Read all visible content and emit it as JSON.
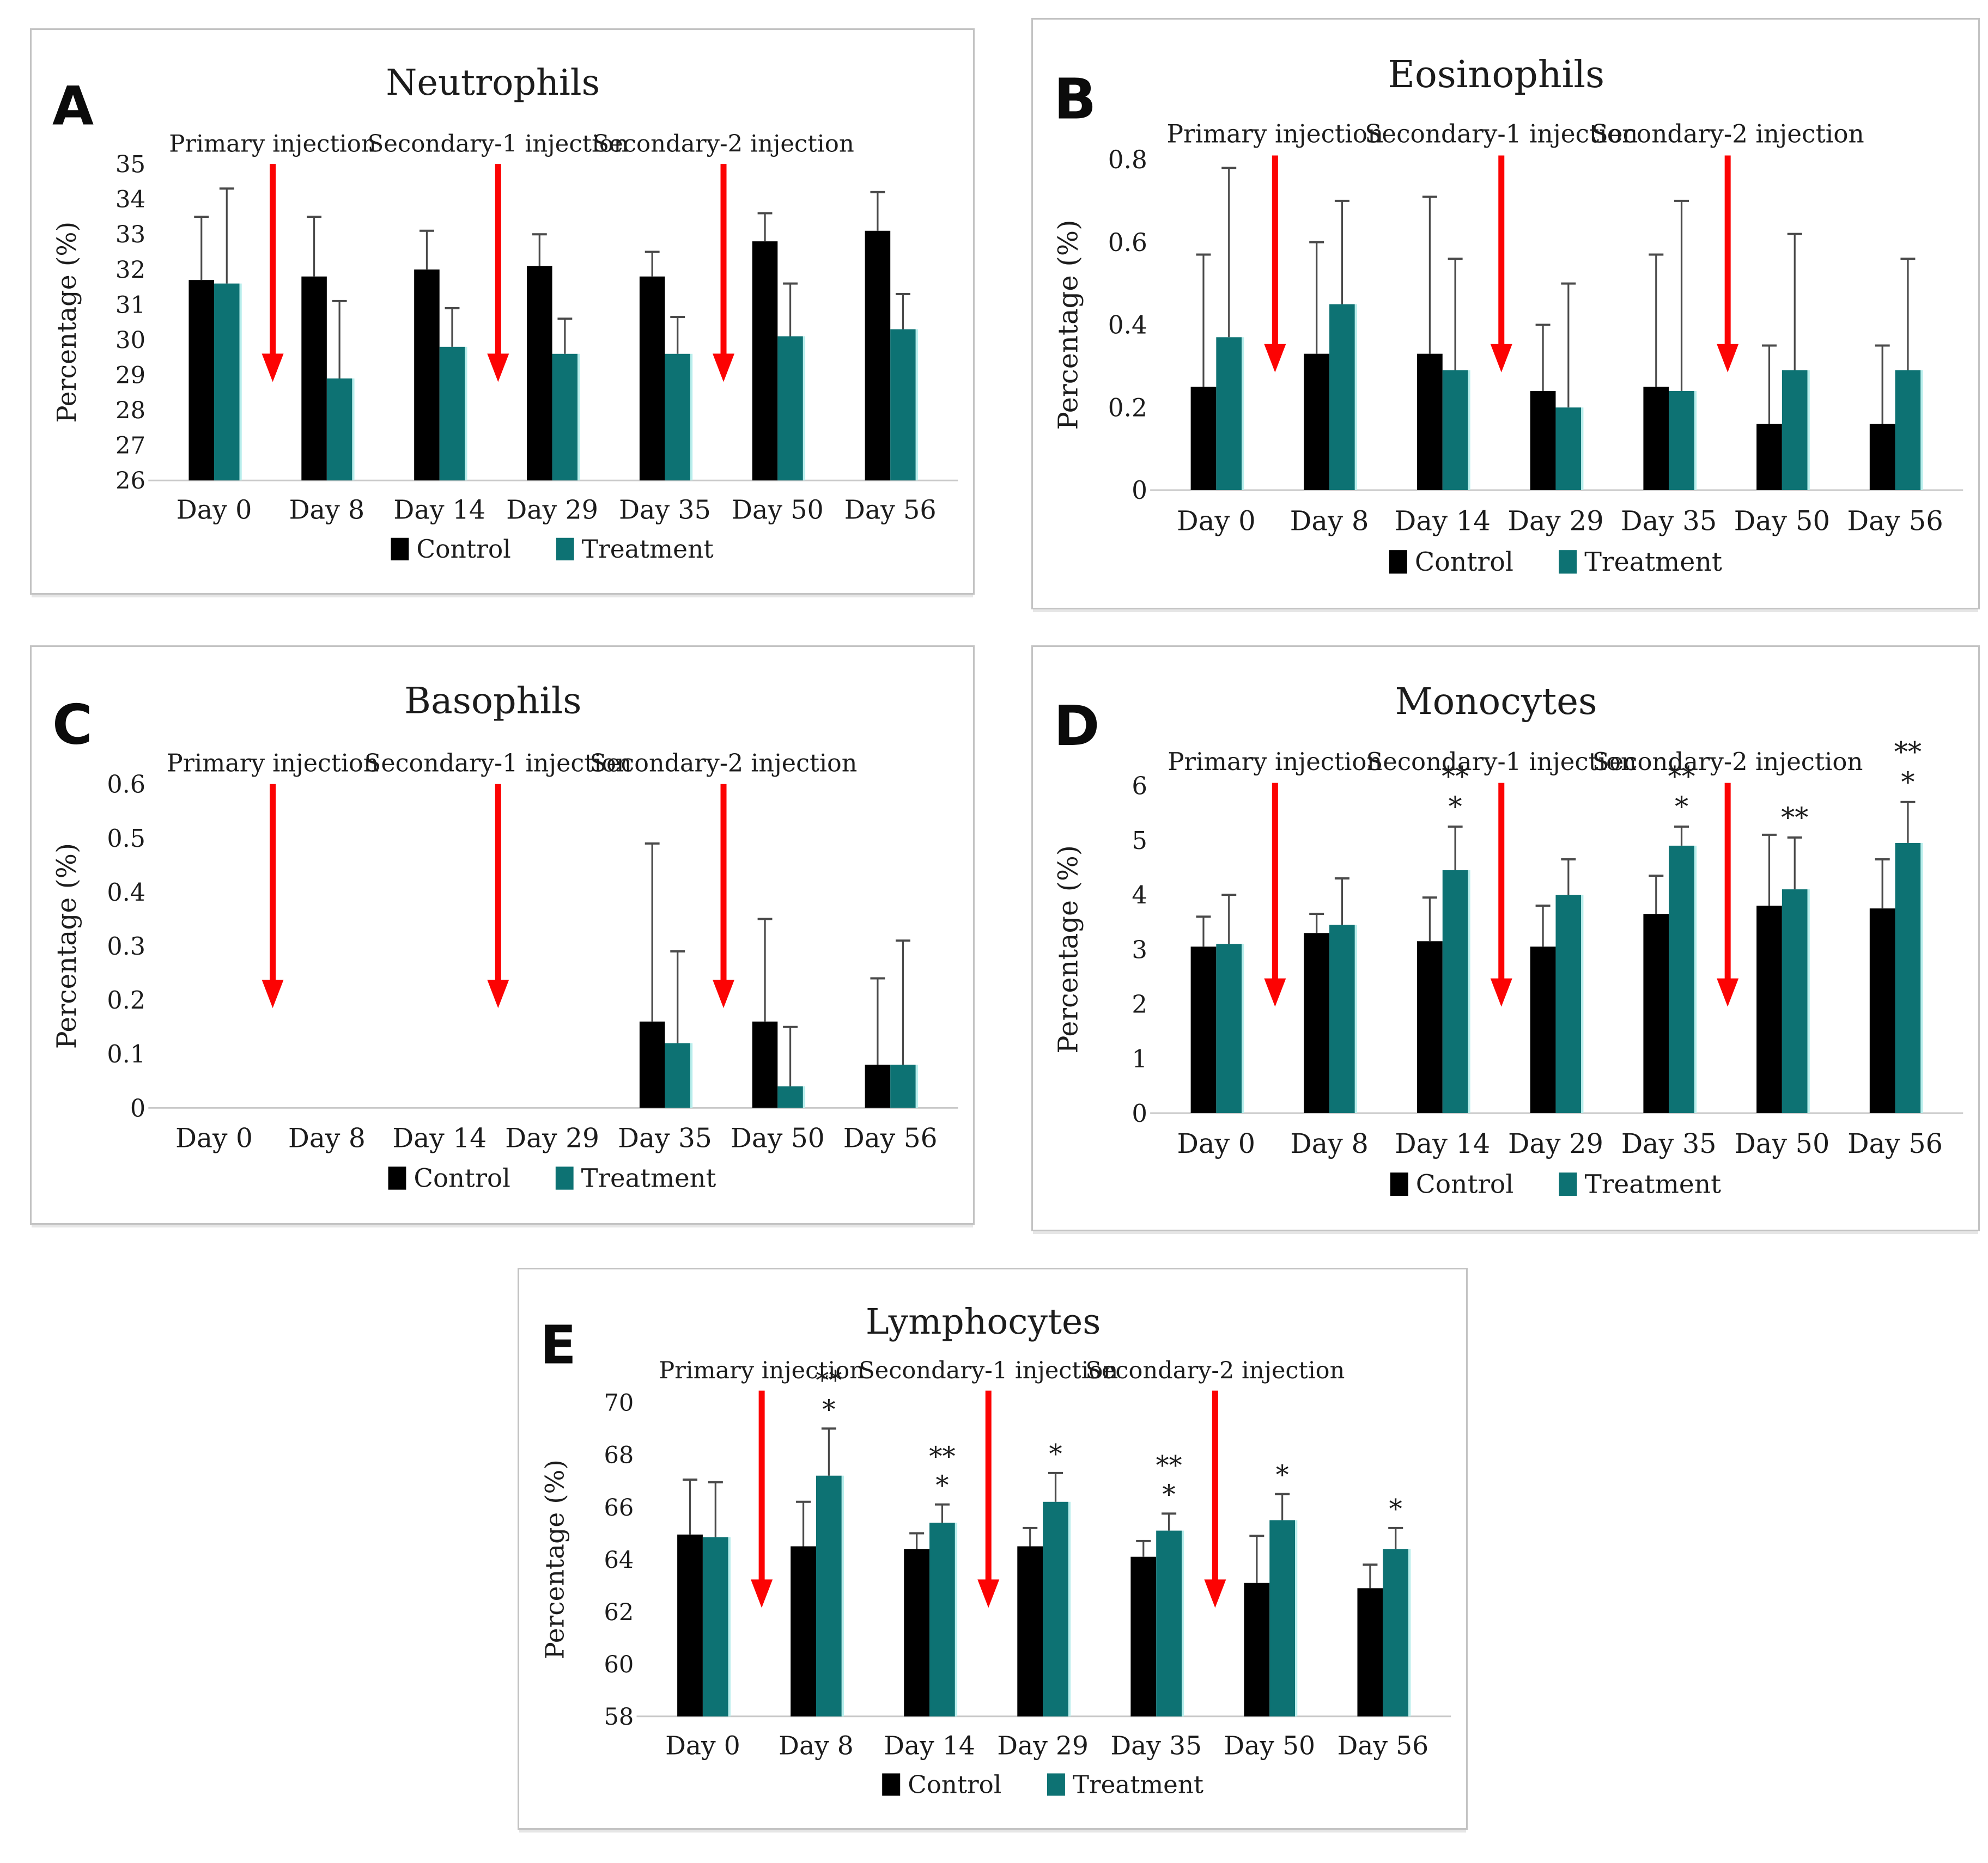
{
  "figure": {
    "description_labels": [
      "A",
      "B",
      "C",
      "D",
      "E"
    ]
  },
  "colors": {
    "control": "#000000",
    "treatment": "#0D7273",
    "treatment_halo": "#B8EEEC",
    "arrow": "#FC0303",
    "error_bar": "#4A4A4A",
    "baseline": "#C9C9C9",
    "text": "#1C1C1C"
  },
  "legend": {
    "control_label": "Control",
    "treatment_label": "Treatment"
  },
  "chart_data": [
    {
      "panel": "A",
      "type": "bar",
      "title": "Neutrophils",
      "ylabel": "Percentage (%)",
      "ylim": [
        26,
        35
      ],
      "yticks": [
        26,
        27,
        28,
        29,
        30,
        31,
        32,
        33,
        34,
        35
      ],
      "ytick_labels": [
        "26",
        "27",
        "28",
        "29",
        "30",
        "31",
        "32",
        "33",
        "34",
        "35"
      ],
      "categories": [
        "Day 0",
        "Day 8",
        "Day 14",
        "Day 29",
        "Day 35",
        "Day 50",
        "Day 56"
      ],
      "series": [
        {
          "name": "Control",
          "color": "#000000",
          "values": [
            31.7,
            31.8,
            32.0,
            32.1,
            31.8,
            32.8,
            33.1
          ],
          "errors_up": [
            1.8,
            1.7,
            1.1,
            0.9,
            0.7,
            0.8,
            1.1
          ],
          "significance": [
            "",
            "",
            "",
            "",
            "",
            "",
            ""
          ]
        },
        {
          "name": "Treatment",
          "color": "#0D7273",
          "values": [
            31.6,
            28.9,
            29.8,
            29.6,
            29.6,
            30.1,
            30.3
          ],
          "errors_up": [
            2.7,
            2.2,
            1.1,
            1.0,
            1.05,
            1.5,
            1.0
          ],
          "significance": [
            "",
            "",
            "",
            "",
            "",
            "",
            ""
          ]
        }
      ],
      "arrows": [
        {
          "label": "Primary injection",
          "slot_boundary": 1,
          "y_top": 35.0,
          "y_tip": 28.8
        },
        {
          "label": "Secondary-1 injection",
          "slot_boundary": 3,
          "y_top": 35.0,
          "y_tip": 28.8
        },
        {
          "label": "Secondary-2 injection",
          "slot_boundary": 5,
          "y_top": 35.0,
          "y_tip": 28.8
        }
      ],
      "legend": [
        "Control",
        "Treatment"
      ]
    },
    {
      "panel": "B",
      "type": "bar",
      "title": "Eosinophils",
      "ylabel": "Percentage (%)",
      "ylim": [
        0,
        0.8
      ],
      "yticks": [
        0,
        0.2,
        0.4,
        0.6,
        0.8
      ],
      "ytick_labels": [
        "0",
        "0.2",
        "0.4",
        "0.6",
        "0.8"
      ],
      "categories": [
        "Day 0",
        "Day 8",
        "Day 14",
        "Day 29",
        "Day 35",
        "Day 50",
        "Day 56"
      ],
      "series": [
        {
          "name": "Control",
          "color": "#000000",
          "values": [
            0.25,
            0.33,
            0.33,
            0.24,
            0.25,
            0.16,
            0.16
          ],
          "errors_up": [
            0.32,
            0.27,
            0.38,
            0.16,
            0.32,
            0.19,
            0.19
          ],
          "significance": [
            "",
            "",
            "",
            "",
            "",
            "",
            ""
          ]
        },
        {
          "name": "Treatment",
          "color": "#0D7273",
          "values": [
            0.37,
            0.45,
            0.29,
            0.2,
            0.24,
            0.29,
            0.29
          ],
          "errors_up": [
            0.41,
            0.25,
            0.27,
            0.3,
            0.46,
            0.33,
            0.27
          ],
          "significance": [
            "",
            "",
            "",
            "",
            "",
            "",
            ""
          ]
        }
      ],
      "arrows": [
        {
          "label": "Primary injection",
          "slot_boundary": 1,
          "y_top": 0.81,
          "y_tip": 0.285
        },
        {
          "label": "Secondary-1 injection",
          "slot_boundary": 3,
          "y_top": 0.81,
          "y_tip": 0.285
        },
        {
          "label": "Secondary-2 injection",
          "slot_boundary": 5,
          "y_top": 0.81,
          "y_tip": 0.285
        }
      ],
      "legend": [
        "Control",
        "Treatment"
      ]
    },
    {
      "panel": "C",
      "type": "bar",
      "title": "Basophils",
      "ylabel": "Percentage (%)",
      "ylim": [
        0,
        0.6
      ],
      "yticks": [
        0,
        0.1,
        0.2,
        0.3,
        0.4,
        0.5,
        0.6
      ],
      "ytick_labels": [
        "0",
        "0.1",
        "0.2",
        "0.3",
        "0.4",
        "0.5",
        "0.6"
      ],
      "categories": [
        "Day 0",
        "Day 8",
        "Day 14",
        "Day 29",
        "Day 35",
        "Day 50",
        "Day 56"
      ],
      "series": [
        {
          "name": "Control",
          "color": "#000000",
          "values": [
            0,
            0,
            0,
            0,
            0.16,
            0.16,
            0.08
          ],
          "errors_up": [
            0,
            0,
            0,
            0,
            0.33,
            0.19,
            0.16
          ],
          "significance": [
            "",
            "",
            "",
            "",
            "",
            "",
            ""
          ]
        },
        {
          "name": "Treatment",
          "color": "#0D7273",
          "values": [
            0,
            0,
            0,
            0,
            0.12,
            0.04,
            0.08
          ],
          "errors_up": [
            0,
            0,
            0,
            0,
            0.17,
            0.11,
            0.23
          ],
          "significance": [
            "",
            "",
            "",
            "",
            "",
            "",
            ""
          ]
        }
      ],
      "arrows": [
        {
          "label": "Primary injection",
          "slot_boundary": 1,
          "y_top": 0.6,
          "y_tip": 0.185
        },
        {
          "label": "Secondary-1 injection",
          "slot_boundary": 3,
          "y_top": 0.6,
          "y_tip": 0.185
        },
        {
          "label": "Secondary-2 injection",
          "slot_boundary": 5,
          "y_top": 0.6,
          "y_tip": 0.185
        }
      ],
      "legend": [
        "Control",
        "Treatment"
      ]
    },
    {
      "panel": "D",
      "type": "bar",
      "title": "Monocytes",
      "ylabel": "Percentage (%)",
      "ylim": [
        0,
        6
      ],
      "yticks": [
        0,
        1,
        2,
        3,
        4,
        5,
        6
      ],
      "ytick_labels": [
        "0",
        "1",
        "2",
        "3",
        "4",
        "5",
        "6"
      ],
      "categories": [
        "Day 0",
        "Day 8",
        "Day 14",
        "Day 29",
        "Day 35",
        "Day 50",
        "Day 56"
      ],
      "series": [
        {
          "name": "Control",
          "color": "#000000",
          "values": [
            3.05,
            3.3,
            3.15,
            3.05,
            3.65,
            3.8,
            3.75
          ],
          "errors_up": [
            0.55,
            0.35,
            0.8,
            0.75,
            0.7,
            1.3,
            0.9
          ],
          "significance": [
            "",
            "",
            "",
            "",
            "",
            "",
            ""
          ]
        },
        {
          "name": "Treatment",
          "color": "#0D7273",
          "values": [
            3.1,
            3.45,
            4.45,
            4.0,
            4.9,
            4.1,
            4.95
          ],
          "errors_up": [
            0.9,
            0.85,
            0.8,
            0.65,
            0.35,
            0.95,
            0.75
          ],
          "significance": [
            "",
            "",
            "**\n*",
            "",
            "**\n*",
            "**",
            "**\n*"
          ]
        }
      ],
      "arrows": [
        {
          "label": "Primary injection",
          "slot_boundary": 1,
          "y_top": 6.05,
          "y_tip": 1.95
        },
        {
          "label": "Secondary-1 injection",
          "slot_boundary": 3,
          "y_top": 6.05,
          "y_tip": 1.95
        },
        {
          "label": "Secondary-2 injection",
          "slot_boundary": 5,
          "y_top": 6.05,
          "y_tip": 1.95
        }
      ],
      "legend": [
        "Control",
        "Treatment"
      ]
    },
    {
      "panel": "E",
      "type": "bar",
      "title": "Lymphocytes",
      "ylabel": "Percentage (%)",
      "ylim": [
        58,
        70
      ],
      "yticks": [
        58,
        60,
        62,
        64,
        66,
        68,
        70
      ],
      "ytick_labels": [
        "58",
        "60",
        "62",
        "64",
        "66",
        "68",
        "70"
      ],
      "categories": [
        "Day 0",
        "Day 8",
        "Day 14",
        "Day 29",
        "Day 35",
        "Day 50",
        "Day 56"
      ],
      "series": [
        {
          "name": "Control",
          "color": "#000000",
          "values": [
            64.95,
            64.5,
            64.4,
            64.5,
            64.1,
            63.1,
            62.9
          ],
          "errors_up": [
            2.1,
            1.7,
            0.6,
            0.7,
            0.6,
            1.8,
            0.9
          ],
          "significance": [
            "",
            "",
            "",
            "",
            "",
            "",
            ""
          ]
        },
        {
          "name": "Treatment",
          "color": "#0D7273",
          "values": [
            64.85,
            67.2,
            65.4,
            66.2,
            65.1,
            65.5,
            64.4
          ],
          "errors_up": [
            2.1,
            1.8,
            0.7,
            1.1,
            0.65,
            1.0,
            0.8
          ],
          "significance": [
            "",
            "**\n*",
            "**\n*",
            "*",
            "**\n*",
            "*",
            "*"
          ]
        }
      ],
      "arrows": [
        {
          "label": "Primary injection",
          "slot_boundary": 1,
          "y_top": 70.45,
          "y_tip": 62.15
        },
        {
          "label": "Secondary-1 injection",
          "slot_boundary": 3,
          "y_top": 70.45,
          "y_tip": 62.15
        },
        {
          "label": "Secondary-2 injection",
          "slot_boundary": 5,
          "y_top": 70.45,
          "y_tip": 62.15
        }
      ],
      "legend": [
        "Control",
        "Treatment"
      ]
    }
  ]
}
